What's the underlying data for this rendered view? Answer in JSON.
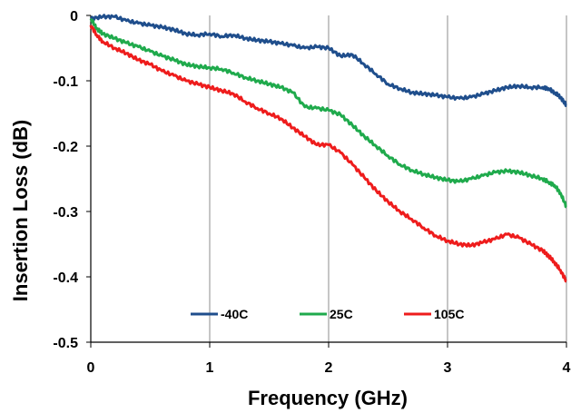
{
  "chart_data": {
    "type": "line",
    "title": "",
    "xlabel": "Frequency (GHz)",
    "ylabel": "Insertion Loss (dB)",
    "xlim": [
      0,
      4
    ],
    "ylim": [
      -0.5,
      0
    ],
    "x_ticks": [
      "0",
      "1",
      "2",
      "3",
      "4"
    ],
    "y_ticks": [
      "0",
      "-0.1",
      "-0.2",
      "-0.3",
      "-0.4",
      "-0.5"
    ],
    "grid": "vertical",
    "legend_position": "bottom-center",
    "series": [
      {
        "name": "-40C",
        "color": "#1f4e8c",
        "x": [
          0,
          0.1,
          0.2,
          0.3,
          0.4,
          0.5,
          0.6,
          0.7,
          0.8,
          0.9,
          1.0,
          1.1,
          1.2,
          1.3,
          1.4,
          1.5,
          1.6,
          1.7,
          1.8,
          1.9,
          2.0,
          2.1,
          2.2,
          2.3,
          2.4,
          2.5,
          2.6,
          2.7,
          2.8,
          2.9,
          3.0,
          3.1,
          3.2,
          3.3,
          3.4,
          3.5,
          3.6,
          3.7,
          3.8,
          3.85,
          3.9,
          3.95,
          4.0
        ],
        "values": [
          -0.005,
          -0.002,
          -0.002,
          -0.008,
          -0.012,
          -0.015,
          -0.018,
          -0.022,
          -0.028,
          -0.03,
          -0.028,
          -0.032,
          -0.03,
          -0.035,
          -0.038,
          -0.04,
          -0.043,
          -0.046,
          -0.05,
          -0.048,
          -0.05,
          -0.062,
          -0.06,
          -0.075,
          -0.09,
          -0.105,
          -0.112,
          -0.118,
          -0.12,
          -0.122,
          -0.125,
          -0.127,
          -0.125,
          -0.12,
          -0.115,
          -0.11,
          -0.108,
          -0.11,
          -0.11,
          -0.112,
          -0.118,
          -0.125,
          -0.138
        ]
      },
      {
        "name": "25C",
        "color": "#1faa4c",
        "x": [
          0,
          0.05,
          0.1,
          0.2,
          0.3,
          0.4,
          0.5,
          0.6,
          0.7,
          0.8,
          0.9,
          1.0,
          1.1,
          1.2,
          1.3,
          1.4,
          1.5,
          1.6,
          1.7,
          1.8,
          1.9,
          2.0,
          2.1,
          2.2,
          2.3,
          2.4,
          2.5,
          2.6,
          2.7,
          2.8,
          2.9,
          3.0,
          3.1,
          3.2,
          3.3,
          3.4,
          3.5,
          3.6,
          3.7,
          3.8,
          3.85,
          3.9,
          3.95,
          4.0
        ],
        "values": [
          -0.005,
          -0.02,
          -0.028,
          -0.035,
          -0.042,
          -0.048,
          -0.055,
          -0.062,
          -0.068,
          -0.075,
          -0.078,
          -0.08,
          -0.082,
          -0.088,
          -0.095,
          -0.1,
          -0.105,
          -0.11,
          -0.118,
          -0.14,
          -0.142,
          -0.145,
          -0.152,
          -0.168,
          -0.185,
          -0.2,
          -0.215,
          -0.228,
          -0.237,
          -0.243,
          -0.248,
          -0.252,
          -0.254,
          -0.25,
          -0.245,
          -0.24,
          -0.238,
          -0.24,
          -0.245,
          -0.25,
          -0.255,
          -0.26,
          -0.272,
          -0.293
        ]
      },
      {
        "name": "105C",
        "color": "#ee1c1c",
        "x": [
          0,
          0.05,
          0.1,
          0.2,
          0.3,
          0.4,
          0.5,
          0.6,
          0.7,
          0.8,
          0.9,
          1.0,
          1.1,
          1.2,
          1.3,
          1.4,
          1.5,
          1.6,
          1.7,
          1.8,
          1.9,
          2.0,
          2.1,
          2.2,
          2.3,
          2.4,
          2.5,
          2.6,
          2.7,
          2.8,
          2.9,
          3.0,
          3.1,
          3.2,
          3.3,
          3.4,
          3.5,
          3.6,
          3.7,
          3.8,
          3.85,
          3.9,
          3.95,
          4.0
        ],
        "values": [
          -0.015,
          -0.03,
          -0.04,
          -0.05,
          -0.058,
          -0.068,
          -0.075,
          -0.085,
          -0.092,
          -0.1,
          -0.105,
          -0.11,
          -0.115,
          -0.12,
          -0.132,
          -0.142,
          -0.15,
          -0.158,
          -0.172,
          -0.185,
          -0.198,
          -0.198,
          -0.21,
          -0.228,
          -0.248,
          -0.268,
          -0.285,
          -0.3,
          -0.312,
          -0.325,
          -0.337,
          -0.345,
          -0.35,
          -0.352,
          -0.347,
          -0.342,
          -0.335,
          -0.34,
          -0.35,
          -0.36,
          -0.368,
          -0.378,
          -0.39,
          -0.407
        ]
      }
    ]
  }
}
